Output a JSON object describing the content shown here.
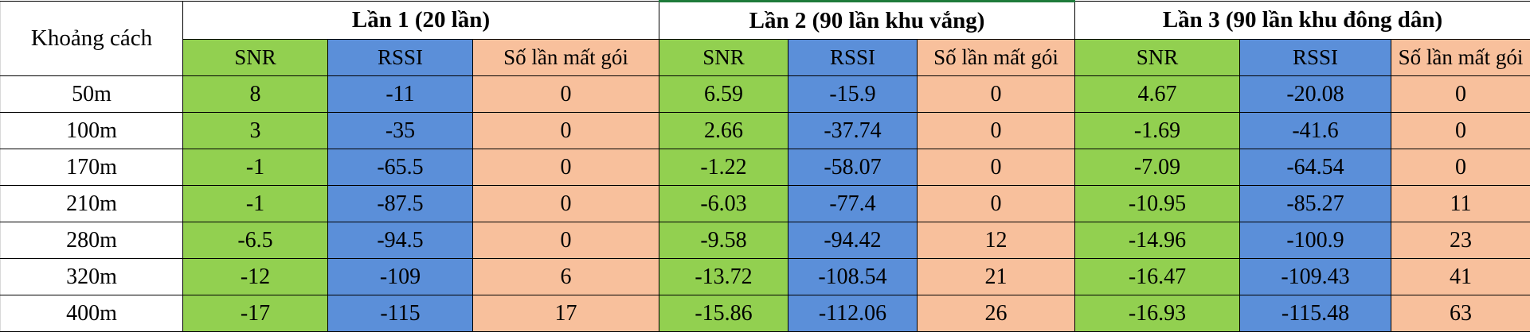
{
  "table": {
    "corner_label": "Khoảng cách",
    "groups": [
      {
        "title": "Lần 1 (20 lần)"
      },
      {
        "title": "Lần 2 (90 lần khu vắng)"
      },
      {
        "title": "Lần 3 (90 lần khu đông dân)"
      }
    ],
    "subheaders": {
      "snr": "SNR",
      "rssi": "RSSI",
      "loss": "Số lần mất gói"
    },
    "rows": [
      {
        "distance": "50m",
        "values": [
          "8",
          "-11",
          "0",
          "6.59",
          "-15.9",
          "0",
          "4.67",
          "-20.08",
          "0"
        ]
      },
      {
        "distance": "100m",
        "values": [
          "3",
          "-35",
          "0",
          "2.66",
          "-37.74",
          "0",
          "-1.69",
          "-41.6",
          "0"
        ]
      },
      {
        "distance": "170m",
        "values": [
          "-1",
          "-65.5",
          "0",
          "-1.22",
          "-58.07",
          "0",
          "-7.09",
          "-64.54",
          "0"
        ]
      },
      {
        "distance": "210m",
        "values": [
          "-1",
          "-87.5",
          "0",
          "-6.03",
          "-77.4",
          "0",
          "-10.95",
          "-85.27",
          "11"
        ]
      },
      {
        "distance": "280m",
        "values": [
          "-6.5",
          "-94.5",
          "0",
          "-9.58",
          "-94.42",
          "12",
          "-14.96",
          "-100.9",
          "23"
        ]
      },
      {
        "distance": "320m",
        "values": [
          "-12",
          "-109",
          "6",
          "-13.72",
          "-108.54",
          "21",
          "-16.47",
          "-109.43",
          "41"
        ]
      },
      {
        "distance": "400m",
        "values": [
          "-17",
          "-115",
          "17",
          "-15.86",
          "-112.06",
          "26",
          "-16.93",
          "-115.48",
          "63"
        ]
      }
    ]
  },
  "colors": {
    "snr": "#92d050",
    "rssi": "#5b8fd9",
    "loss": "#f8c09c",
    "selection": "#1e7b3a"
  }
}
